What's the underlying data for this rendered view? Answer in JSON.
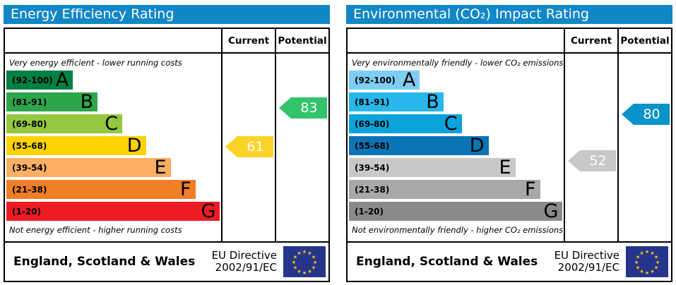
{
  "chart_data": [
    {
      "type": "epc-rating-bands",
      "title": "Energy Efficiency Rating",
      "header_color": "#1287c6",
      "columns": {
        "current_label": "Current",
        "potential_label": "Potential"
      },
      "top_note": "Very energy efficient - lower running costs",
      "bottom_note": "Not energy efficient - higher running costs",
      "bands": [
        {
          "label": "(92-100)",
          "letter": "A",
          "min": 92,
          "max": 100,
          "color": "#008142",
          "width_pct": 31
        },
        {
          "label": "(81-91)",
          "letter": "B",
          "min": 81,
          "max": 91,
          "color": "#2da64b",
          "width_pct": 42.5
        },
        {
          "label": "(69-80)",
          "letter": "C",
          "min": 69,
          "max": 80,
          "color": "#95c73f",
          "width_pct": 54
        },
        {
          "label": "(55-68)",
          "letter": "D",
          "min": 55,
          "max": 68,
          "color": "#ffd300",
          "width_pct": 65
        },
        {
          "label": "(39-54)",
          "letter": "E",
          "min": 39,
          "max": 54,
          "color": "#fbaf64",
          "width_pct": 76.5
        },
        {
          "label": "(21-38)",
          "letter": "F",
          "min": 21,
          "max": 38,
          "color": "#f07e27",
          "width_pct": 88
        },
        {
          "label": "(1-20)",
          "letter": "G",
          "min": 1,
          "max": 20,
          "color": "#ed1c24",
          "width_pct": 99.5
        }
      ],
      "current": {
        "value": 61,
        "color": "#fed327"
      },
      "potential": {
        "value": 83,
        "color": "#33c36a"
      },
      "footer": {
        "region": "England, Scotland & Wales",
        "directive_line1": "EU Directive",
        "directive_line2": "2002/91/EC"
      },
      "flag_colors": {
        "background": "#26358c",
        "stars": "#ffcc00"
      }
    },
    {
      "type": "epc-rating-bands",
      "title": "Environmental (CO₂) Impact Rating",
      "header_color": "#1287c6",
      "columns": {
        "current_label": "Current",
        "potential_label": "Potential"
      },
      "top_note": "Very environmentally friendly - lower CO₂ emissions",
      "bottom_note": "Not environmentally friendly - higher CO₂ emissions",
      "bands": [
        {
          "label": "(92-100)",
          "letter": "A",
          "min": 92,
          "max": 100,
          "color": "#7dcdf5",
          "width_pct": 33
        },
        {
          "label": "(81-91)",
          "letter": "B",
          "min": 81,
          "max": 91,
          "color": "#28b7ec",
          "width_pct": 44
        },
        {
          "label": "(69-80)",
          "letter": "C",
          "min": 69,
          "max": 80,
          "color": "#0ca3dc",
          "width_pct": 52.5
        },
        {
          "label": "(55-68)",
          "letter": "D",
          "min": 55,
          "max": 68,
          "color": "#0a74b5",
          "width_pct": 65
        },
        {
          "label": "(39-54)",
          "letter": "E",
          "min": 39,
          "max": 54,
          "color": "#c8c8c8",
          "width_pct": 77.5
        },
        {
          "label": "(21-38)",
          "letter": "F",
          "min": 21,
          "max": 38,
          "color": "#a8a8a8",
          "width_pct": 89
        },
        {
          "label": "(1-20)",
          "letter": "G",
          "min": 1,
          "max": 20,
          "color": "#8a8a8a",
          "width_pct": 99.5
        }
      ],
      "current": {
        "value": 52,
        "color": "#c8c8c8"
      },
      "potential": {
        "value": 80,
        "color": "#0a93c9"
      },
      "footer": {
        "region": "England, Scotland & Wales",
        "directive_line1": "EU Directive",
        "directive_line2": "2002/91/EC"
      },
      "flag_colors": {
        "background": "#26358c",
        "stars": "#ffcc00"
      }
    }
  ]
}
